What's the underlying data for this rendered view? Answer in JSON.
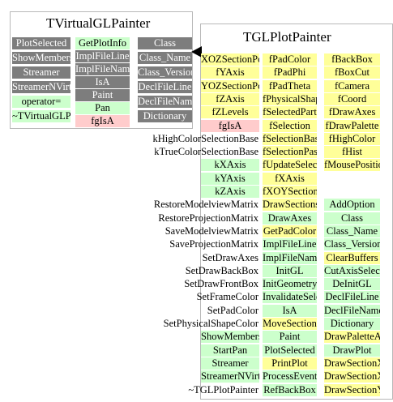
{
  "left_class": {
    "title": "TVirtualGLPainter",
    "col1": [
      {
        "label": "PlotSelected",
        "kind": "gray"
      },
      {
        "label": "ShowMembers",
        "kind": "gray"
      },
      {
        "label": "Streamer",
        "kind": "gray"
      },
      {
        "label": "StreamerNVirtual",
        "kind": "gray"
      },
      {
        "label": "operator=",
        "kind": "green"
      },
      {
        "label": "~TVirtualGLPainter",
        "kind": "green"
      }
    ],
    "col2": [
      {
        "label": "GetPlotInfo",
        "kind": "green"
      },
      {
        "label": "ImplFileLine",
        "kind": "gray"
      },
      {
        "label": "ImplFileName",
        "kind": "gray"
      },
      {
        "label": "IsA",
        "kind": "gray"
      },
      {
        "label": "Paint",
        "kind": "gray"
      },
      {
        "label": "Pan",
        "kind": "green"
      },
      {
        "label": "fgIsA",
        "kind": "pink"
      }
    ],
    "col3": [
      {
        "label": "Class",
        "kind": "gray"
      },
      {
        "label": "Class_Name",
        "kind": "gray"
      },
      {
        "label": "Class_Version",
        "kind": "gray"
      },
      {
        "label": "DeclFileLine",
        "kind": "gray"
      },
      {
        "label": "DeclFileName",
        "kind": "gray"
      },
      {
        "label": "Dictionary",
        "kind": "gray"
      }
    ]
  },
  "right_class": {
    "title": "TGLPlotPainter",
    "col1": [
      {
        "label": "XOZSectionPos",
        "kind": "yellow"
      },
      {
        "label": "fYAxis",
        "kind": "yellow"
      },
      {
        "label": "YOZSectionPos",
        "kind": "yellow"
      },
      {
        "label": "fZAxis",
        "kind": "yellow"
      },
      {
        "label": "fZLevels",
        "kind": "yellow"
      },
      {
        "label": "fgIsA",
        "kind": "pink"
      },
      {
        "label": "kHighColorSelectionBase",
        "kind": "green"
      },
      {
        "label": "kTrueColorSelectionBase",
        "kind": "green"
      },
      {
        "label": "kXAxis",
        "kind": "green"
      },
      {
        "label": "kYAxis",
        "kind": "green"
      },
      {
        "label": "kZAxis",
        "kind": "green"
      },
      {
        "label": "RestoreModelviewMatrix",
        "kind": "green"
      },
      {
        "label": "RestoreProjectionMatrix",
        "kind": "green"
      },
      {
        "label": "SaveModelviewMatrix",
        "kind": "green"
      },
      {
        "label": "SaveProjectionMatrix",
        "kind": "green"
      },
      {
        "label": "SetDrawAxes",
        "kind": "green"
      },
      {
        "label": "SetDrawBackBox",
        "kind": "green"
      },
      {
        "label": "SetDrawFrontBox",
        "kind": "green"
      },
      {
        "label": "SetFrameColor",
        "kind": "green"
      },
      {
        "label": "SetPadColor",
        "kind": "green"
      },
      {
        "label": "SetPhysicalShapeColor",
        "kind": "green"
      },
      {
        "label": "ShowMembers",
        "kind": "green"
      },
      {
        "label": "StartPan",
        "kind": "green"
      },
      {
        "label": "Streamer",
        "kind": "green"
      },
      {
        "label": "StreamerNVirtual",
        "kind": "green"
      },
      {
        "label": "~TGLPlotPainter",
        "kind": "green"
      }
    ],
    "col2": [
      {
        "label": "fPadColor",
        "kind": "yellow"
      },
      {
        "label": "fPadPhi",
        "kind": "yellow"
      },
      {
        "label": "fPadTheta",
        "kind": "yellow"
      },
      {
        "label": "fPhysicalShapeColor",
        "kind": "yellow"
      },
      {
        "label": "fSelectedPart",
        "kind": "yellow"
      },
      {
        "label": "fSelection",
        "kind": "yellow"
      },
      {
        "label": "fSelectionBase",
        "kind": "yellow"
      },
      {
        "label": "fSelectionPass",
        "kind": "yellow"
      },
      {
        "label": "fUpdateSelection",
        "kind": "yellow"
      },
      {
        "label": "fXAxis",
        "kind": "yellow"
      },
      {
        "label": "fXOYSectionPos",
        "kind": "yellow"
      },
      {
        "label": "DrawSections",
        "kind": "yellow"
      },
      {
        "label": "DrawAxes",
        "kind": "green"
      },
      {
        "label": "GetPadColor",
        "kind": "yellow"
      },
      {
        "label": "ImplFileLine",
        "kind": "green"
      },
      {
        "label": "ImplFileName",
        "kind": "green"
      },
      {
        "label": "InitGL",
        "kind": "green"
      },
      {
        "label": "InitGeometry",
        "kind": "green"
      },
      {
        "label": "InvalidateSelection",
        "kind": "green"
      },
      {
        "label": "IsA",
        "kind": "green"
      },
      {
        "label": "MoveSection",
        "kind": "yellow"
      },
      {
        "label": "Paint",
        "kind": "green"
      },
      {
        "label": "PlotSelected",
        "kind": "green"
      },
      {
        "label": "PrintPlot",
        "kind": "yellow"
      },
      {
        "label": "ProcessEvent",
        "kind": "green"
      },
      {
        "label": "RefBackBox",
        "kind": "green"
      }
    ],
    "col3": [
      {
        "label": "fBackBox",
        "kind": "yellow"
      },
      {
        "label": "fBoxCut",
        "kind": "yellow"
      },
      {
        "label": "fCamera",
        "kind": "yellow"
      },
      {
        "label": "fCoord",
        "kind": "yellow"
      },
      {
        "label": "fDrawAxes",
        "kind": "yellow"
      },
      {
        "label": "fDrawPalette",
        "kind": "yellow"
      },
      {
        "label": "fHighColor",
        "kind": "yellow"
      },
      {
        "label": "fHist",
        "kind": "yellow"
      },
      {
        "label": "fMousePosition",
        "kind": "yellow"
      },
      {
        "label": "",
        "kind": "none"
      },
      {
        "label": "",
        "kind": "none"
      },
      {
        "label": "AddOption",
        "kind": "green"
      },
      {
        "label": "Class",
        "kind": "green"
      },
      {
        "label": "Class_Name",
        "kind": "green"
      },
      {
        "label": "Class_Version",
        "kind": "green"
      },
      {
        "label": "ClearBuffers",
        "kind": "yellow"
      },
      {
        "label": "CutAxisSelected",
        "kind": "green"
      },
      {
        "label": "DeInitGL",
        "kind": "green"
      },
      {
        "label": "DeclFileLine",
        "kind": "green"
      },
      {
        "label": "DeclFileName",
        "kind": "green"
      },
      {
        "label": "Dictionary",
        "kind": "green"
      },
      {
        "label": "DrawPaletteAxis",
        "kind": "yellow"
      },
      {
        "label": "DrawPlot",
        "kind": "green"
      },
      {
        "label": "DrawSectionXOY",
        "kind": "yellow"
      },
      {
        "label": "DrawSectionXOZ",
        "kind": "yellow"
      },
      {
        "label": "DrawSectionYOZ",
        "kind": "yellow"
      }
    ]
  },
  "colors": {
    "gray": "#7d7d7d",
    "green": "#ccffcc",
    "yellow": "#ffff99",
    "pink": "#ffcccc",
    "border": "#b8b8b8"
  }
}
